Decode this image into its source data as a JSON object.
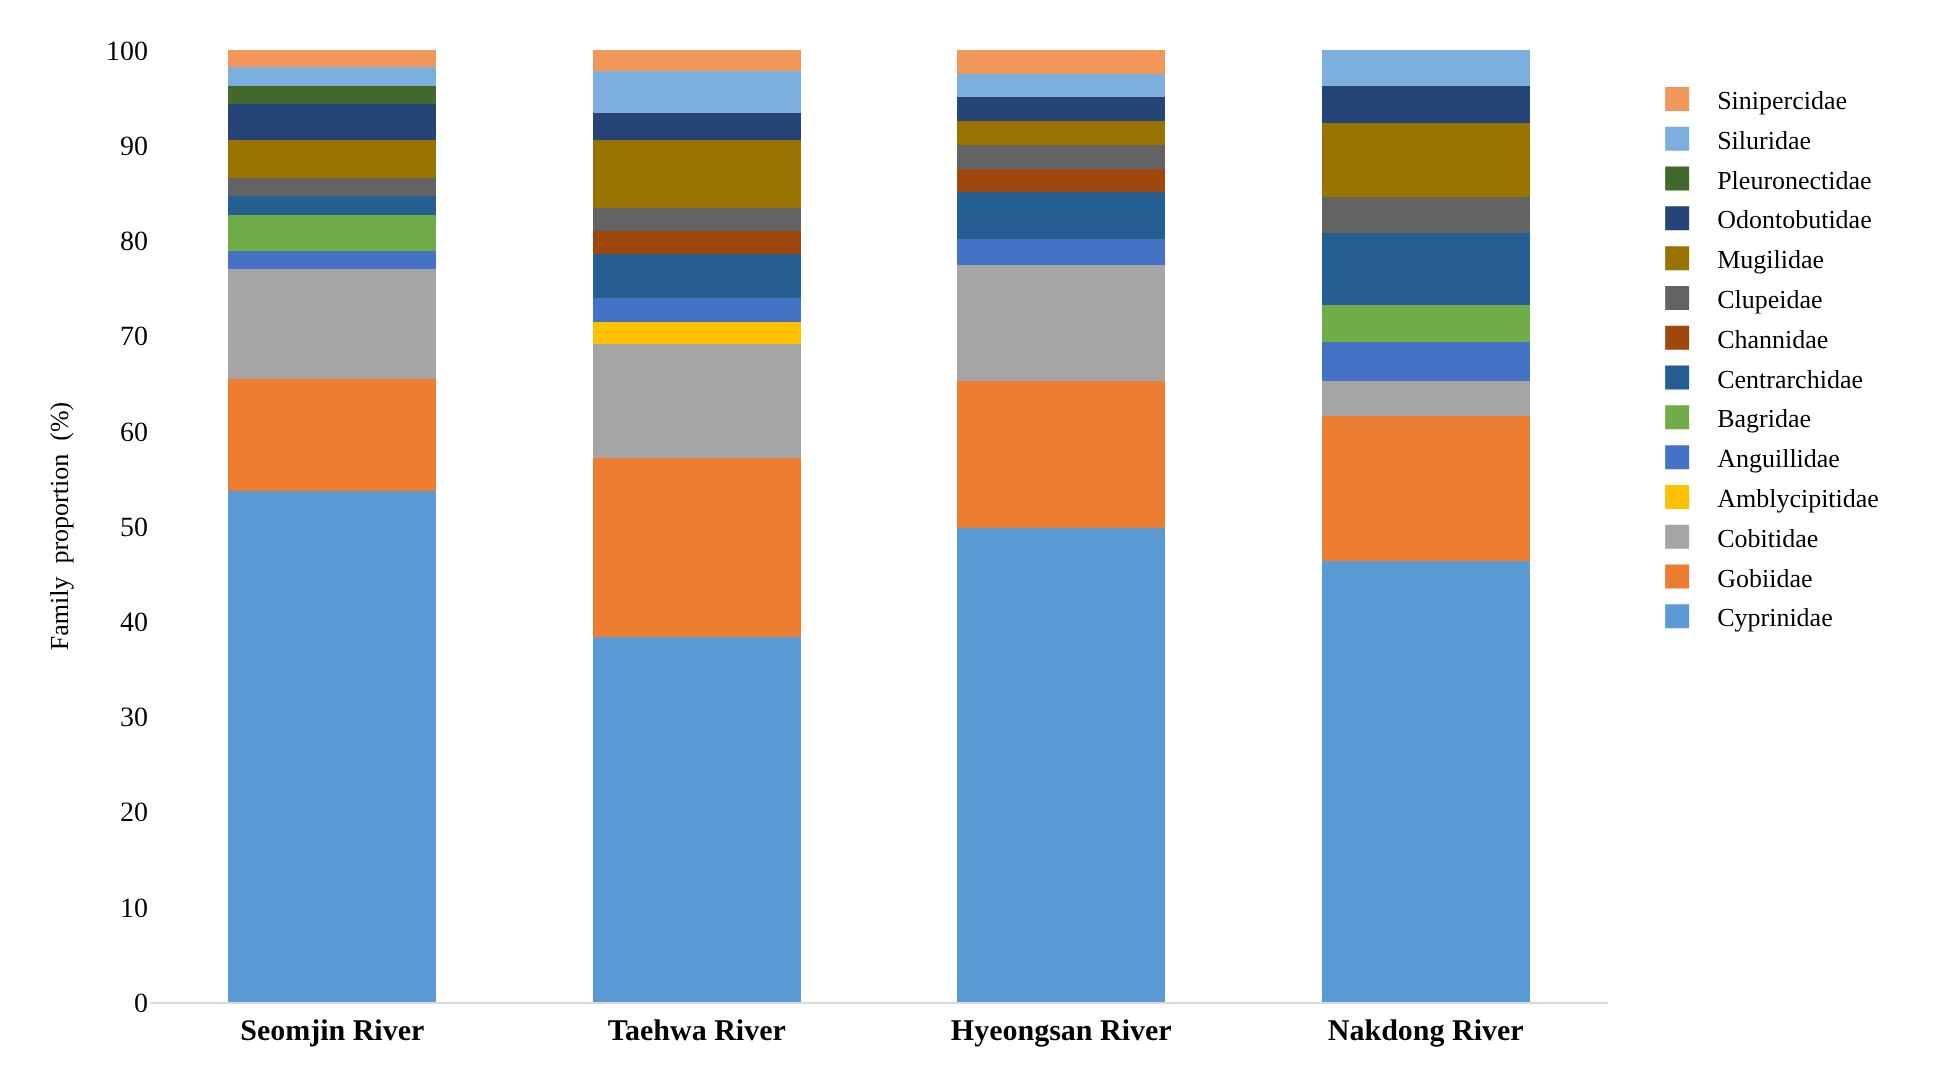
{
  "chart_data": {
    "type": "bar",
    "stacked": true,
    "ylabel": "Family  proportion  (%)",
    "categories": [
      "Seomjin River",
      "Taehwa River",
      "Hyeongsan River",
      "Nakdong River"
    ],
    "ylim": [
      0,
      100
    ],
    "yticks": [
      0,
      10,
      20,
      30,
      40,
      50,
      60,
      70,
      80,
      90,
      100
    ],
    "grid": false,
    "legend": "right",
    "series": [
      {
        "name": "Cyprinidae",
        "color": "#5b9bd5",
        "values": [
          53.7,
          38.3,
          49.8,
          46.3
        ]
      },
      {
        "name": "Gobiidae",
        "color": "#ed7d31",
        "values": [
          11.7,
          18.8,
          15.4,
          15.3
        ]
      },
      {
        "name": "Cobitidae",
        "color": "#a5a5a5",
        "values": [
          11.6,
          12.0,
          12.2,
          3.6
        ]
      },
      {
        "name": "Amblycipitidae",
        "color": "#ffc000",
        "values": [
          0,
          2.3,
          0,
          0
        ]
      },
      {
        "name": "Anguillidae",
        "color": "#4472c4",
        "values": [
          1.9,
          2.5,
          2.7,
          4.1
        ]
      },
      {
        "name": "Bagridae",
        "color": "#70ad47",
        "values": [
          3.8,
          0,
          0,
          3.9
        ]
      },
      {
        "name": "Centrarchidae",
        "color": "#255e91",
        "values": [
          2.0,
          4.7,
          5.0,
          7.6
        ]
      },
      {
        "name": "Channidae",
        "color": "#9e480e",
        "values": [
          0,
          2.4,
          2.4,
          0
        ]
      },
      {
        "name": "Clupeidae",
        "color": "#636363",
        "values": [
          1.9,
          2.4,
          2.5,
          3.8
        ]
      },
      {
        "name": "Mugilidae",
        "color": "#997300",
        "values": [
          3.9,
          7.1,
          2.5,
          7.7
        ]
      },
      {
        "name": "Odontobutidae",
        "color": "#264478",
        "values": [
          3.8,
          2.9,
          2.6,
          3.9
        ]
      },
      {
        "name": "Pleuronectidae",
        "color": "#43682b",
        "values": [
          1.9,
          0,
          0,
          0
        ]
      },
      {
        "name": "Siluridae",
        "color": "#7cafdd",
        "values": [
          2.0,
          4.4,
          2.4,
          3.8
        ]
      },
      {
        "name": "Sinipercidae",
        "color": "#f1975a",
        "values": [
          1.8,
          2.2,
          2.5,
          0
        ]
      }
    ]
  }
}
